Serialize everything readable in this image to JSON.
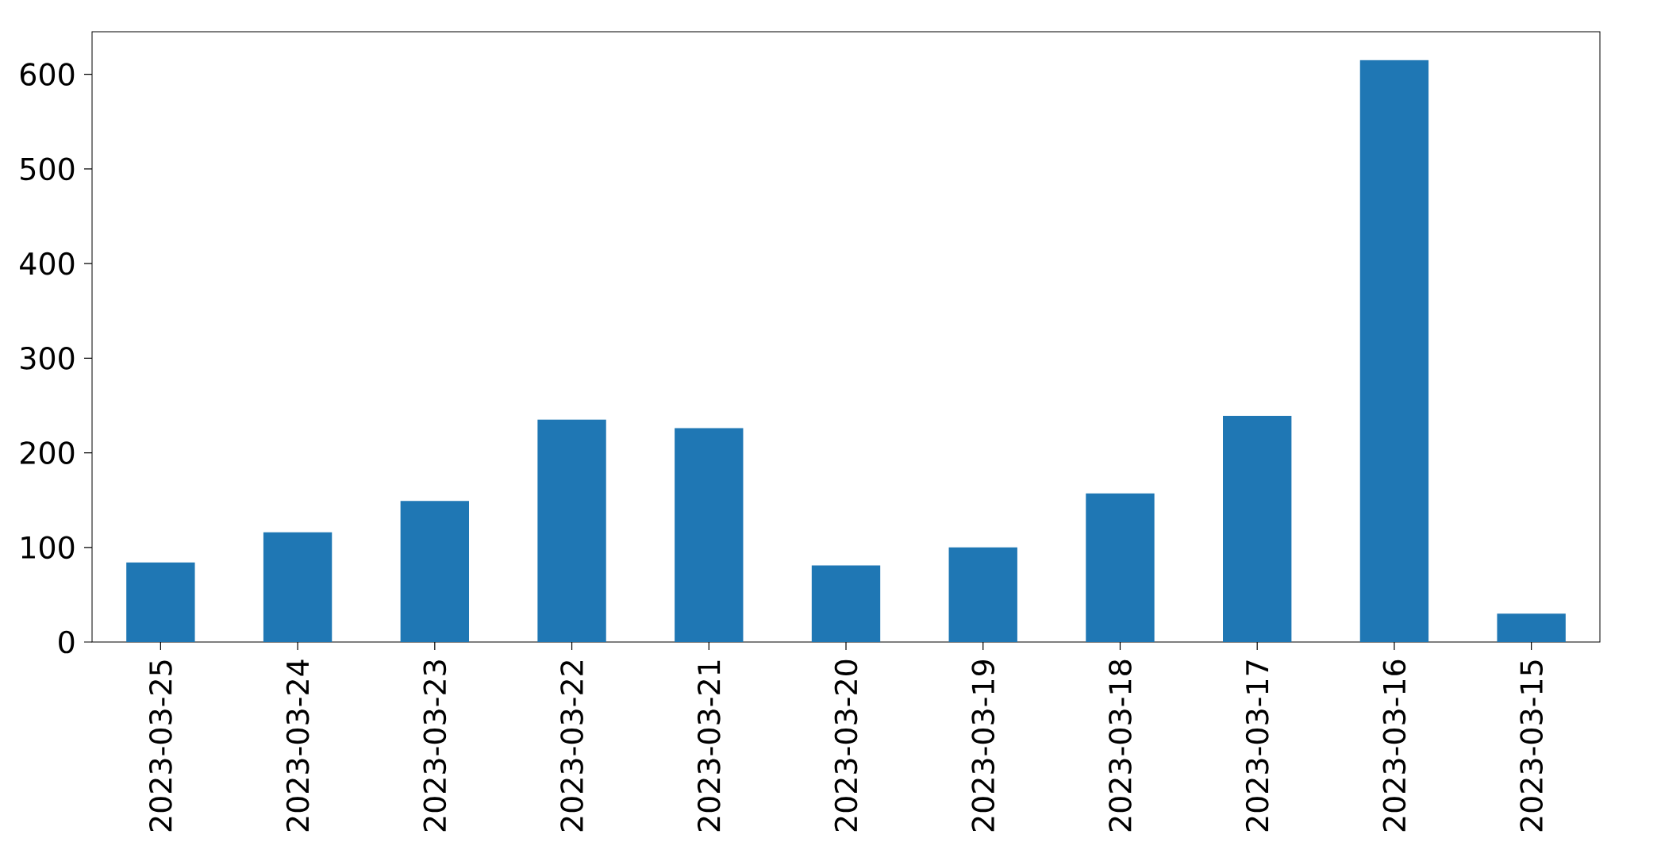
{
  "chart_data": {
    "type": "bar",
    "categories": [
      "2023-03-25",
      "2023-03-24",
      "2023-03-23",
      "2023-03-22",
      "2023-03-21",
      "2023-03-20",
      "2023-03-19",
      "2023-03-18",
      "2023-03-17",
      "2023-03-16",
      "2023-03-15"
    ],
    "values": [
      84,
      116,
      149,
      235,
      226,
      81,
      100,
      157,
      239,
      615,
      30
    ],
    "color": "#1f77b4",
    "ylim": [
      0,
      645
    ],
    "yticks": [
      0,
      100,
      200,
      300,
      400,
      500,
      600
    ]
  }
}
